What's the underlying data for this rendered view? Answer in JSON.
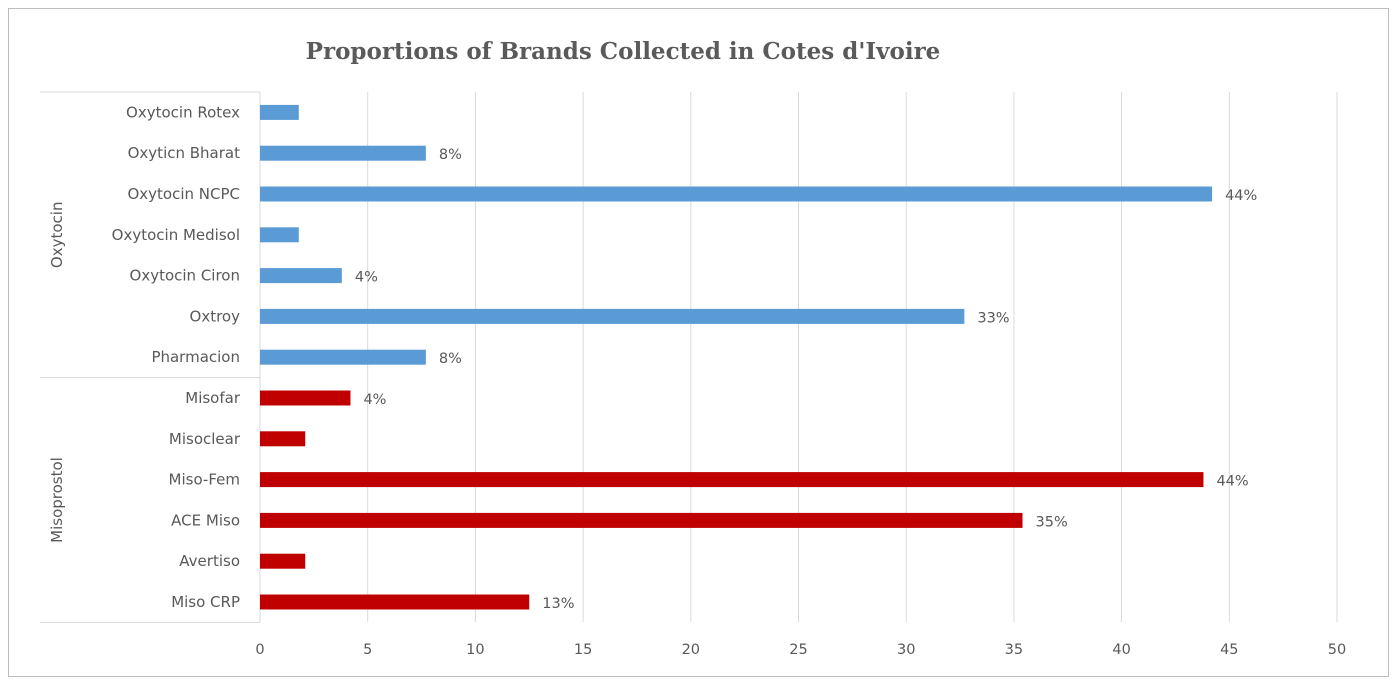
{
  "chart_data": {
    "type": "bar",
    "orientation": "horizontal",
    "title": "Proportions of Brands Collected in Cotes d'Ivoire",
    "xlabel": "",
    "ylabel": "",
    "xlim": [
      0,
      50
    ],
    "xticks": [
      0,
      5,
      10,
      15,
      20,
      25,
      30,
      35,
      40,
      45,
      50
    ],
    "grid": "vertical",
    "legend": "none",
    "groups": [
      {
        "name": "Oxytocin",
        "color": "#5b9bd5",
        "items": [
          {
            "label": "Oxytocin Rotex",
            "value": 1.8,
            "data_label": ""
          },
          {
            "label": "Oxyticn Bharat",
            "value": 7.7,
            "data_label": "8%"
          },
          {
            "label": "Oxytocin NCPC",
            "value": 44.2,
            "data_label": "44%"
          },
          {
            "label": "Oxytocin Medisol",
            "value": 1.8,
            "data_label": ""
          },
          {
            "label": "Oxytocin Ciron",
            "value": 3.8,
            "data_label": "4%"
          },
          {
            "label": "Oxtroy",
            "value": 32.7,
            "data_label": "33%"
          },
          {
            "label": "Pharmacion",
            "value": 7.7,
            "data_label": "8%"
          }
        ]
      },
      {
        "name": "Misoprostol",
        "color": "#c00000",
        "items": [
          {
            "label": "Misofar",
            "value": 4.2,
            "data_label": "4%"
          },
          {
            "label": "Misoclear",
            "value": 2.1,
            "data_label": ""
          },
          {
            "label": "Miso-Fem",
            "value": 43.8,
            "data_label": "44%"
          },
          {
            "label": "ACE Miso",
            "value": 35.4,
            "data_label": "35%"
          },
          {
            "label": "Avertiso",
            "value": 2.1,
            "data_label": ""
          },
          {
            "label": "Miso CRP",
            "value": 12.5,
            "data_label": "13%"
          }
        ]
      }
    ]
  }
}
